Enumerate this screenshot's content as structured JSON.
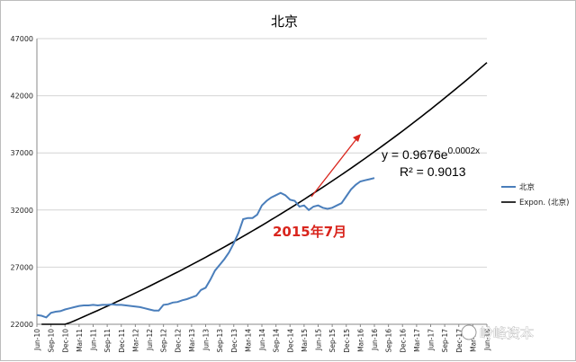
{
  "chart_data": {
    "type": "line",
    "title": "北京",
    "xlabel": "",
    "ylabel": "",
    "ylim": [
      22000,
      47000
    ],
    "yticks": [
      22000,
      27000,
      32000,
      37000,
      42000,
      47000
    ],
    "ytick_labels": [
      "22000",
      "27000",
      "32000",
      "37000",
      "42000",
      "47000"
    ],
    "x_tick_labels": [
      "Jun-10",
      "Sep-10",
      "Dec-10",
      "Mar-11",
      "Jun-11",
      "Sep-11",
      "Dec-11",
      "Mar-12",
      "Jun-12",
      "Sep-12",
      "Dec-12",
      "Mar-13",
      "Jun-13",
      "Sep-13",
      "Dec-13",
      "Mar-14",
      "Jun-14",
      "Sep-14",
      "Dec-14",
      "Mar-15",
      "Jun-15",
      "Sep-15",
      "Dec-15",
      "Mar-16",
      "Jun-16",
      "Sep-16",
      "Dec-16",
      "Mar-17",
      "Jun-17",
      "Sep-17",
      "Dec-17",
      "Mar-18",
      "Jun-18"
    ],
    "x_start": "2010-06",
    "grid": "horizontal",
    "legend_position": "right",
    "series": [
      {
        "name": "北京",
        "color": "#4a7ebb",
        "x": [
          "2010-06",
          "2010-07",
          "2010-08",
          "2010-09",
          "2010-10",
          "2010-11",
          "2010-12",
          "2011-01",
          "2011-02",
          "2011-03",
          "2011-04",
          "2011-05",
          "2011-06",
          "2011-07",
          "2011-08",
          "2011-09",
          "2011-10",
          "2011-11",
          "2011-12",
          "2012-01",
          "2012-02",
          "2012-03",
          "2012-04",
          "2012-05",
          "2012-06",
          "2012-07",
          "2012-08",
          "2012-09",
          "2012-10",
          "2012-11",
          "2012-12",
          "2013-01",
          "2013-02",
          "2013-03",
          "2013-04",
          "2013-05",
          "2013-06",
          "2013-07",
          "2013-08",
          "2013-09",
          "2013-10",
          "2013-11",
          "2013-12",
          "2014-01",
          "2014-02",
          "2014-03",
          "2014-04",
          "2014-05",
          "2014-06",
          "2014-07",
          "2014-08",
          "2014-09",
          "2014-10",
          "2014-11",
          "2014-12",
          "2015-01",
          "2015-02",
          "2015-03",
          "2015-04",
          "2015-05",
          "2015-06",
          "2015-07",
          "2015-08",
          "2015-09",
          "2015-10",
          "2015-11",
          "2015-12",
          "2016-01",
          "2016-02",
          "2016-03",
          "2016-04",
          "2016-05",
          "2016-06"
        ],
        "values": [
          22800,
          22750,
          22600,
          23000,
          23100,
          23150,
          23300,
          23400,
          23500,
          23600,
          23650,
          23650,
          23700,
          23650,
          23700,
          23700,
          23750,
          23700,
          23700,
          23650,
          23600,
          23550,
          23500,
          23400,
          23300,
          23200,
          23200,
          23700,
          23750,
          23900,
          23950,
          24100,
          24200,
          24350,
          24500,
          25000,
          25200,
          25900,
          26700,
          27200,
          27700,
          28300,
          29100,
          30000,
          31200,
          31300,
          31300,
          31600,
          32400,
          32800,
          33100,
          33300,
          33500,
          33300,
          32900,
          32800,
          32300,
          32400,
          32000,
          32300,
          32400,
          32200,
          32100,
          32200,
          32400,
          32600,
          33200,
          33800,
          34200,
          34500,
          34600,
          34700,
          34800
        ]
      },
      {
        "name": "Expon. (北京)",
        "color": "#000000",
        "type": "trendline"
      }
    ],
    "annotations": [
      {
        "text": "y = 0.9676e",
        "superscript": "0.0002x"
      },
      {
        "text": "R² = 0.9013"
      },
      {
        "text": "2015年7月",
        "color": "#d9251d"
      }
    ],
    "watermark": "岭峰资本"
  }
}
